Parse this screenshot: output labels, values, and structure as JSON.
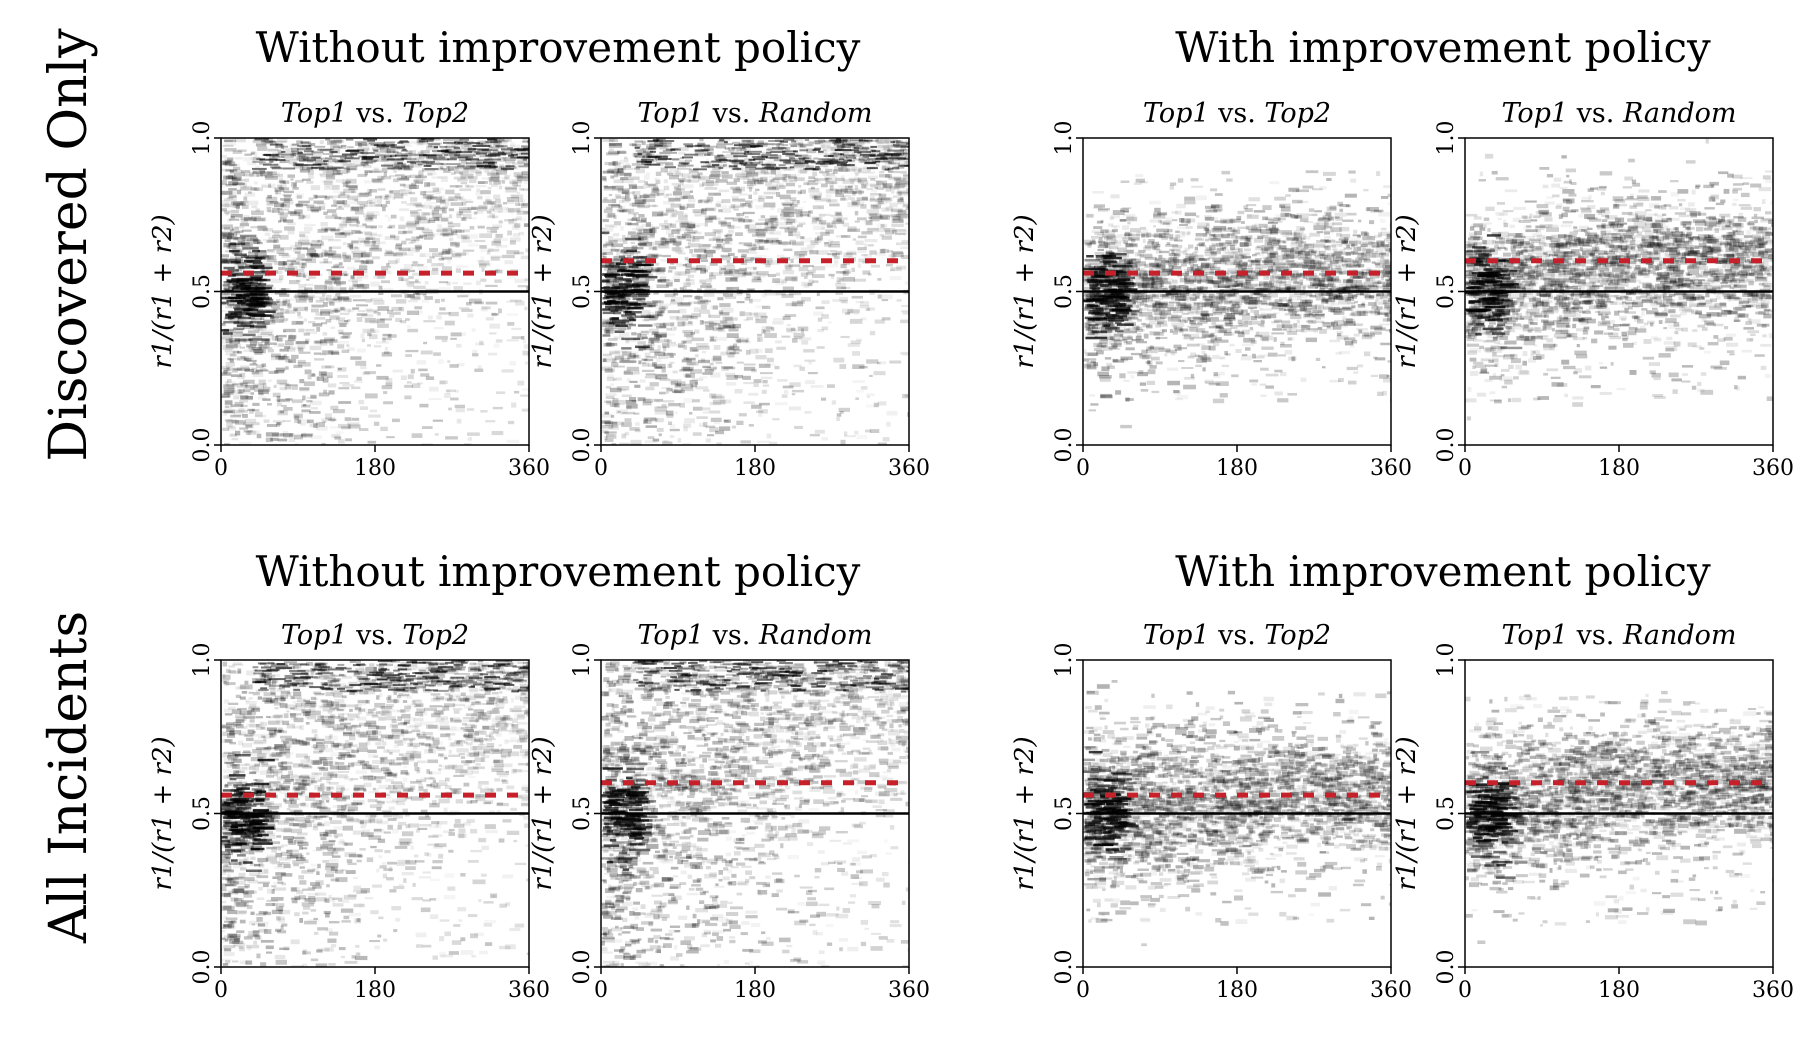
{
  "row_labels": [
    "Discovered Only",
    "All Incidents"
  ],
  "column_titles": [
    "Without improvement policy",
    "With improvement policy"
  ],
  "panel_titles": [
    {
      "a": "Top1",
      "vs": " vs. ",
      "b": "Top2"
    },
    {
      "a": "Top1",
      "vs": " vs. ",
      "b": "Random"
    }
  ],
  "ylabel": "r1/(r1 + r2)",
  "chart_data": [
    {
      "type": "heatmap",
      "row": "Discovered Only",
      "column": "Without improvement policy",
      "title": "Top1 vs. Top2",
      "xlabel": "",
      "ylabel": "r1/(r1 + r2)",
      "xlim": [
        0,
        360
      ],
      "ylim": [
        0.0,
        1.0
      ],
      "x_ticks": [
        "0",
        "180",
        "360"
      ],
      "y_ticks": [
        "0.0",
        "0.5",
        "1.0"
      ],
      "reference_line_y": 0.5,
      "red_dashed_line_y": 0.56,
      "density_profile": "wide"
    },
    {
      "type": "heatmap",
      "row": "Discovered Only",
      "column": "Without improvement policy",
      "title": "Top1 vs. Random",
      "xlabel": "",
      "ylabel": "r1/(r1 + r2)",
      "xlim": [
        0,
        360
      ],
      "ylim": [
        0.0,
        1.0
      ],
      "x_ticks": [
        "0",
        "180",
        "360"
      ],
      "y_ticks": [
        "0.0",
        "0.5",
        "1.0"
      ],
      "reference_line_y": 0.5,
      "red_dashed_line_y": 0.6,
      "density_profile": "wide"
    },
    {
      "type": "heatmap",
      "row": "Discovered Only",
      "column": "With improvement policy",
      "title": "Top1 vs. Top2",
      "xlabel": "",
      "ylabel": "r1/(r1 + r2)",
      "xlim": [
        0,
        360
      ],
      "ylim": [
        0.0,
        1.0
      ],
      "x_ticks": [
        "0",
        "180",
        "360"
      ],
      "y_ticks": [
        "0.0",
        "0.5",
        "1.0"
      ],
      "reference_line_y": 0.5,
      "red_dashed_line_y": 0.56,
      "density_profile": "narrow"
    },
    {
      "type": "heatmap",
      "row": "Discovered Only",
      "column": "With improvement policy",
      "title": "Top1 vs. Random",
      "xlabel": "",
      "ylabel": "r1/(r1 + r2)",
      "xlim": [
        0,
        360
      ],
      "ylim": [
        0.0,
        1.0
      ],
      "x_ticks": [
        "0",
        "180",
        "360"
      ],
      "y_ticks": [
        "0.0",
        "0.5",
        "1.0"
      ],
      "reference_line_y": 0.5,
      "red_dashed_line_y": 0.6,
      "density_profile": "narrow"
    },
    {
      "type": "heatmap",
      "row": "All Incidents",
      "column": "Without improvement policy",
      "title": "Top1 vs. Top2",
      "xlabel": "",
      "ylabel": "r1/(r1 + r2)",
      "xlim": [
        0,
        360
      ],
      "ylim": [
        0.0,
        1.0
      ],
      "x_ticks": [
        "0",
        "180",
        "360"
      ],
      "y_ticks": [
        "0.0",
        "0.5",
        "1.0"
      ],
      "reference_line_y": 0.5,
      "red_dashed_line_y": 0.56,
      "density_profile": "wide"
    },
    {
      "type": "heatmap",
      "row": "All Incidents",
      "column": "Without improvement policy",
      "title": "Top1 vs. Random",
      "xlabel": "",
      "ylabel": "r1/(r1 + r2)",
      "xlim": [
        0,
        360
      ],
      "ylim": [
        0.0,
        1.0
      ],
      "x_ticks": [
        "0",
        "180",
        "360"
      ],
      "y_ticks": [
        "0.0",
        "0.5",
        "1.0"
      ],
      "reference_line_y": 0.5,
      "red_dashed_line_y": 0.6,
      "density_profile": "wide"
    },
    {
      "type": "heatmap",
      "row": "All Incidents",
      "column": "With improvement policy",
      "title": "Top1 vs. Top2",
      "xlabel": "",
      "ylabel": "r1/(r1 + r2)",
      "xlim": [
        0,
        360
      ],
      "ylim": [
        0.0,
        1.0
      ],
      "x_ticks": [
        "0",
        "180",
        "360"
      ],
      "y_ticks": [
        "0.0",
        "0.5",
        "1.0"
      ],
      "reference_line_y": 0.5,
      "red_dashed_line_y": 0.56,
      "density_profile": "narrow"
    },
    {
      "type": "heatmap",
      "row": "All Incidents",
      "column": "With improvement policy",
      "title": "Top1 vs. Random",
      "xlabel": "",
      "ylabel": "r1/(r1 + r2)",
      "xlim": [
        0,
        360
      ],
      "ylim": [
        0.0,
        1.0
      ],
      "x_ticks": [
        "0",
        "180",
        "360"
      ],
      "y_ticks": [
        "0.0",
        "0.5",
        "1.0"
      ],
      "reference_line_y": 0.5,
      "red_dashed_line_y": 0.6,
      "density_profile": "narrow"
    }
  ],
  "colors": {
    "reference_line": "#000000",
    "red_dashed_line": "#c8202a",
    "density": "#000000",
    "frame": "#000000"
  }
}
